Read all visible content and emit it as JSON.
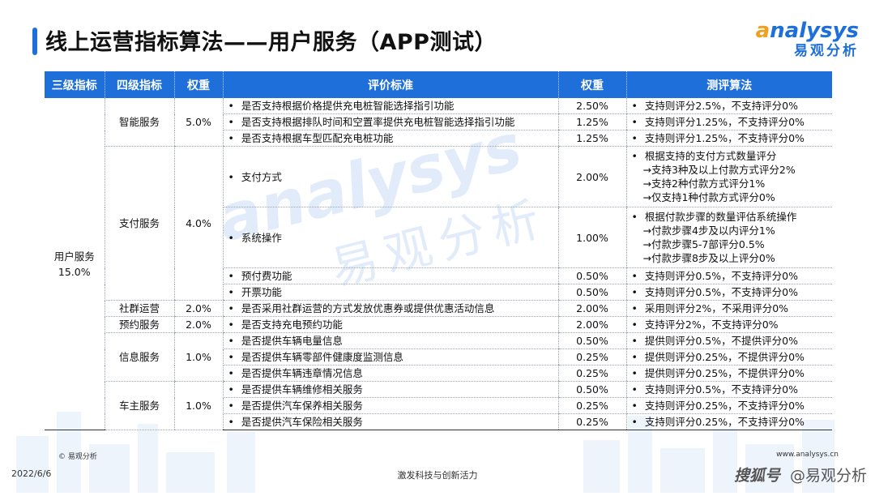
{
  "header": {
    "title": "线上运营指标算法——用户服务（APP测试）",
    "logo_en_rest": "nalysys",
    "logo_en_a": "a",
    "logo_cn": "易观分析"
  },
  "watermark": {
    "en": "analysys",
    "cn": "易观分析"
  },
  "table": {
    "headers": [
      "三级指标",
      "四级指标",
      "权重",
      "评价标准",
      "权重",
      "测评算法"
    ],
    "level3": {
      "name": "用户服务",
      "weight": "15.0%"
    },
    "groups": [
      {
        "name": "智能服务",
        "weight": "5.0%",
        "rows": [
          {
            "criterion": "是否支持根据价格提供充电桩智能选择指引功能",
            "weight": "2.50%",
            "method": [
              "支持则评分2.5%，不支持评分0%"
            ]
          },
          {
            "criterion": "是否支持根据排队时间和空置率提供充电桩智能选择指引功能",
            "weight": "1.25%",
            "method": [
              "支持则评分1.25%，不支持评分0%"
            ]
          },
          {
            "criterion": "是否支持根据车型匹配充电桩功能",
            "weight": "1.25%",
            "method": [
              "支持则评分1.25%，不支持评分0%"
            ]
          }
        ]
      },
      {
        "name": "支付服务",
        "weight": "4.0%",
        "rows": [
          {
            "criterion": "支付方式",
            "weight": "2.00%",
            "method": [
              "根据支持的支付方式数量评分",
              "→支持3种及以上付款方式评分2%",
              "→支持2种付款方式评分1%",
              "→仅支持1种付款方式评分0%"
            ]
          },
          {
            "criterion": "系统操作",
            "weight": "1.00%",
            "method": [
              "根据付款步骤的数量评估系统操作",
              "→付款步骤4步及以内评分1%",
              "→付款步骤5-7部评分0.5%",
              "→付款步骤8步及以上评分0%"
            ]
          },
          {
            "criterion": "预付费功能",
            "weight": "0.50%",
            "method": [
              "支持则评分0.5%，不支持评分0%"
            ]
          },
          {
            "criterion": "开票功能",
            "weight": "0.50%",
            "method": [
              "支持则评分0.5%，不支持评分0%"
            ]
          }
        ]
      },
      {
        "name": "社群运营",
        "weight": "2.0%",
        "rows": [
          {
            "criterion": "是否采用社群运营的方式发放优惠券或提供优惠活动信息",
            "weight": "2.00%",
            "method": [
              "采用则评分2%，不采用评分0%"
            ]
          }
        ]
      },
      {
        "name": "预约服务",
        "weight": "2.0%",
        "rows": [
          {
            "criterion": "是否支持充电预约功能",
            "weight": "2.00%",
            "method": [
              "支持评分2%，不支持评分0%"
            ]
          }
        ]
      },
      {
        "name": "信息服务",
        "weight": "1.0%",
        "rows": [
          {
            "criterion": "是否提供车辆电量信息",
            "weight": "0.50%",
            "method": [
              "提供则评分0.5%，不提供评分0%"
            ]
          },
          {
            "criterion": "是否提供车辆零部件健康度监测信息",
            "weight": "0.25%",
            "method": [
              "提供则评分0.25%，不提供评分0%"
            ]
          },
          {
            "criterion": "是否提供车辆违章情况信息",
            "weight": "0.25%",
            "method": [
              "提供则评分0.25%，不提供评分0%"
            ]
          }
        ]
      },
      {
        "name": "车主服务",
        "weight": "1.0%",
        "rows": [
          {
            "criterion": "是否提供车辆维修相关服务",
            "weight": "0.50%",
            "method": [
              "支持则评分0.5%，不支持评分0%"
            ]
          },
          {
            "criterion": "是否提供汽车保养相关服务",
            "weight": "0.25%",
            "method": [
              "支持则评分0.25%，不支持评分0%"
            ]
          },
          {
            "criterion": "是否提供汽车保险相关服务",
            "weight": "0.25%",
            "method": [
              "支持则评分0.25%，不支持评分0%"
            ]
          }
        ]
      }
    ]
  },
  "footer": {
    "copyright": "© 易观分析",
    "url": "www.analysys.cn",
    "date": "2022/6/6",
    "slogan": "激发科技与创新活力",
    "source_mark": "搜狐号",
    "brand": "@易观分析"
  }
}
